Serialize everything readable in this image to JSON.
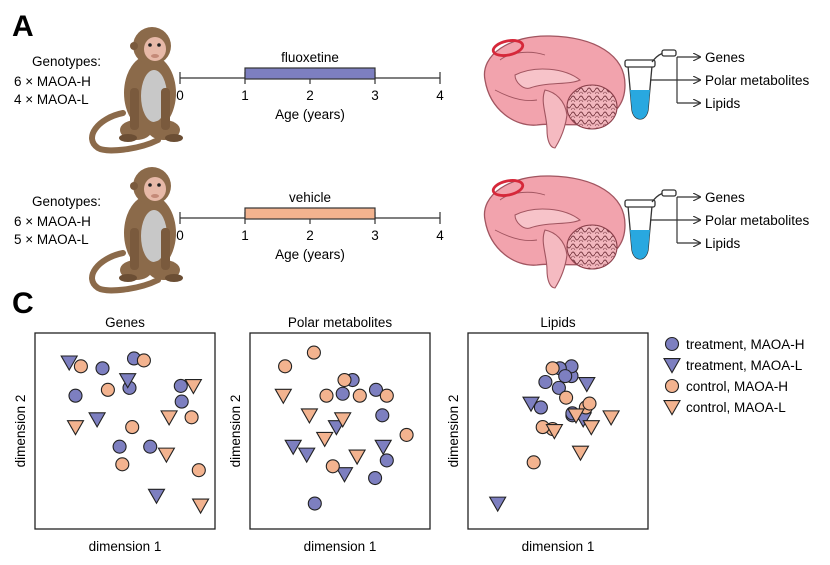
{
  "panel_a": {
    "label": "A",
    "cohorts": [
      {
        "genotype_title": "Genotypes:",
        "genotype_lines": [
          "6 × MAOA-H",
          "4 × MAOA-L"
        ],
        "treatment_label": "fluoxetine",
        "treatment_color": "#7d7fc0",
        "axis_ticks": [
          "0",
          "1",
          "2",
          "3",
          "4"
        ],
        "axis_label": "Age (years)",
        "outputs": [
          "Genes",
          "Polar metabolites",
          "Lipids"
        ]
      },
      {
        "genotype_title": "Genotypes:",
        "genotype_lines": [
          "6 × MAOA-H",
          "5 × MAOA-L"
        ],
        "treatment_label": "vehicle",
        "treatment_color": "#f3b38f",
        "axis_ticks": [
          "0",
          "1",
          "2",
          "3",
          "4"
        ],
        "axis_label": "Age (years)",
        "outputs": [
          "Genes",
          "Polar metabolites",
          "Lipids"
        ]
      }
    ]
  },
  "panel_c": {
    "label": "C",
    "plots": [
      {
        "title": "Genes",
        "xlabel": "dimension 1",
        "ylabel": "dimension 2"
      },
      {
        "title": "Polar metabolites",
        "xlabel": "dimension 1",
        "ylabel": "dimension 2"
      },
      {
        "title": "Lipids",
        "xlabel": "dimension 1",
        "ylabel": "dimension 2"
      }
    ],
    "legend": [
      {
        "label": "treatment, MAOA-H",
        "shape": "circle",
        "color": "#7d7fc0"
      },
      {
        "label": "treatment, MAOA-L",
        "shape": "triangle",
        "color": "#7d7fc0"
      },
      {
        "label": "control, MAOA-H",
        "shape": "circle",
        "color": "#f3b38f"
      },
      {
        "label": "control, MAOA-L",
        "shape": "triangle",
        "color": "#f3b38f"
      }
    ]
  },
  "colors": {
    "treatment": "#7d7fc0",
    "control": "#f3b38f",
    "monkey": "#8b6a4a",
    "brain": "#f2a3ad",
    "tube_liquid": "#29a8e0"
  },
  "chart_data": [
    {
      "type": "scatter",
      "title": "Genes",
      "xlabel": "dimension 1",
      "ylabel": "dimension 2",
      "series": [
        {
          "name": "treatment, MAOA-H",
          "points": [
            [
              75,
              82
            ],
            [
              110,
              87
            ],
            [
              163,
              65
            ],
            [
              162,
              73
            ],
            [
              94,
              42
            ],
            [
              128,
              42
            ],
            [
              105,
              72
            ],
            [
              45,
              68
            ]
          ]
        },
        {
          "name": "treatment, MAOA-L",
          "points": [
            [
              38,
              85
            ],
            [
              103,
              76
            ],
            [
              69,
              56
            ],
            [
              135,
              17
            ]
          ]
        },
        {
          "name": "control, MAOA-H",
          "points": [
            [
              121,
              86
            ],
            [
              51,
              83
            ],
            [
              81,
              71
            ],
            [
              174,
              57
            ],
            [
              108,
              52
            ],
            [
              182,
              30
            ],
            [
              97,
              33
            ]
          ]
        },
        {
          "name": "control, MAOA-L",
          "points": [
            [
              176,
              73
            ],
            [
              149,
              57
            ],
            [
              45,
              52
            ],
            [
              146,
              38
            ],
            [
              184,
              12
            ]
          ]
        }
      ]
    },
    {
      "type": "scatter",
      "title": "Polar metabolites",
      "xlabel": "dimension 1",
      "ylabel": "dimension 2",
      "series": [
        {
          "name": "treatment, MAOA-H",
          "points": [
            [
              114,
              76
            ],
            [
              103,
              69
            ],
            [
              140,
              71
            ],
            [
              147,
              58
            ],
            [
              152,
              35
            ],
            [
              139,
              26
            ],
            [
              72,
              13
            ]
          ]
        },
        {
          "name": "treatment, MAOA-L",
          "points": [
            [
              48,
              42
            ],
            [
              96,
              52
            ],
            [
              63,
              38
            ],
            [
              148,
              42
            ],
            [
              105,
              28
            ]
          ]
        },
        {
          "name": "control, MAOA-H",
          "points": [
            [
              39,
              83
            ],
            [
              105,
              76
            ],
            [
              122,
              68
            ],
            [
              152,
              68
            ],
            [
              174,
              48
            ],
            [
              92,
              32
            ],
            [
              71,
              90
            ],
            [
              85,
              68
            ]
          ]
        },
        {
          "name": "control, MAOA-L",
          "points": [
            [
              103,
              56
            ],
            [
              83,
              46
            ],
            [
              119,
              37
            ],
            [
              37,
              68
            ],
            [
              66,
              58
            ]
          ]
        }
      ]
    },
    {
      "type": "scatter",
      "title": "Lipids",
      "xlabel": "dimension 1",
      "ylabel": "dimension 2",
      "series": [
        {
          "name": "treatment, MAOA-H",
          "points": [
            [
              115,
              78
            ],
            [
              115,
              83
            ],
            [
              81,
              62
            ],
            [
              102,
              82
            ],
            [
              116,
              58
            ],
            [
              116,
              59
            ],
            [
              108,
              78
            ],
            [
              86,
              75
            ],
            [
              101,
              72
            ]
          ]
        },
        {
          "name": "treatment, MAOA-L",
          "points": [
            [
              70,
              64
            ],
            [
              132,
              74
            ],
            [
              128,
              56
            ],
            [
              33,
              13
            ]
          ]
        },
        {
          "name": "control, MAOA-H",
          "points": [
            [
              109,
              67
            ],
            [
              94,
              82
            ],
            [
              131,
              62
            ],
            [
              94,
              51
            ],
            [
              135,
              64
            ],
            [
              83,
              52
            ],
            [
              73,
              34
            ]
          ]
        },
        {
          "name": "control, MAOA-L",
          "points": [
            [
              120,
              58
            ],
            [
              137,
              52
            ],
            [
              96,
              50
            ],
            [
              159,
              57
            ],
            [
              125,
              39
            ]
          ]
        }
      ]
    }
  ]
}
